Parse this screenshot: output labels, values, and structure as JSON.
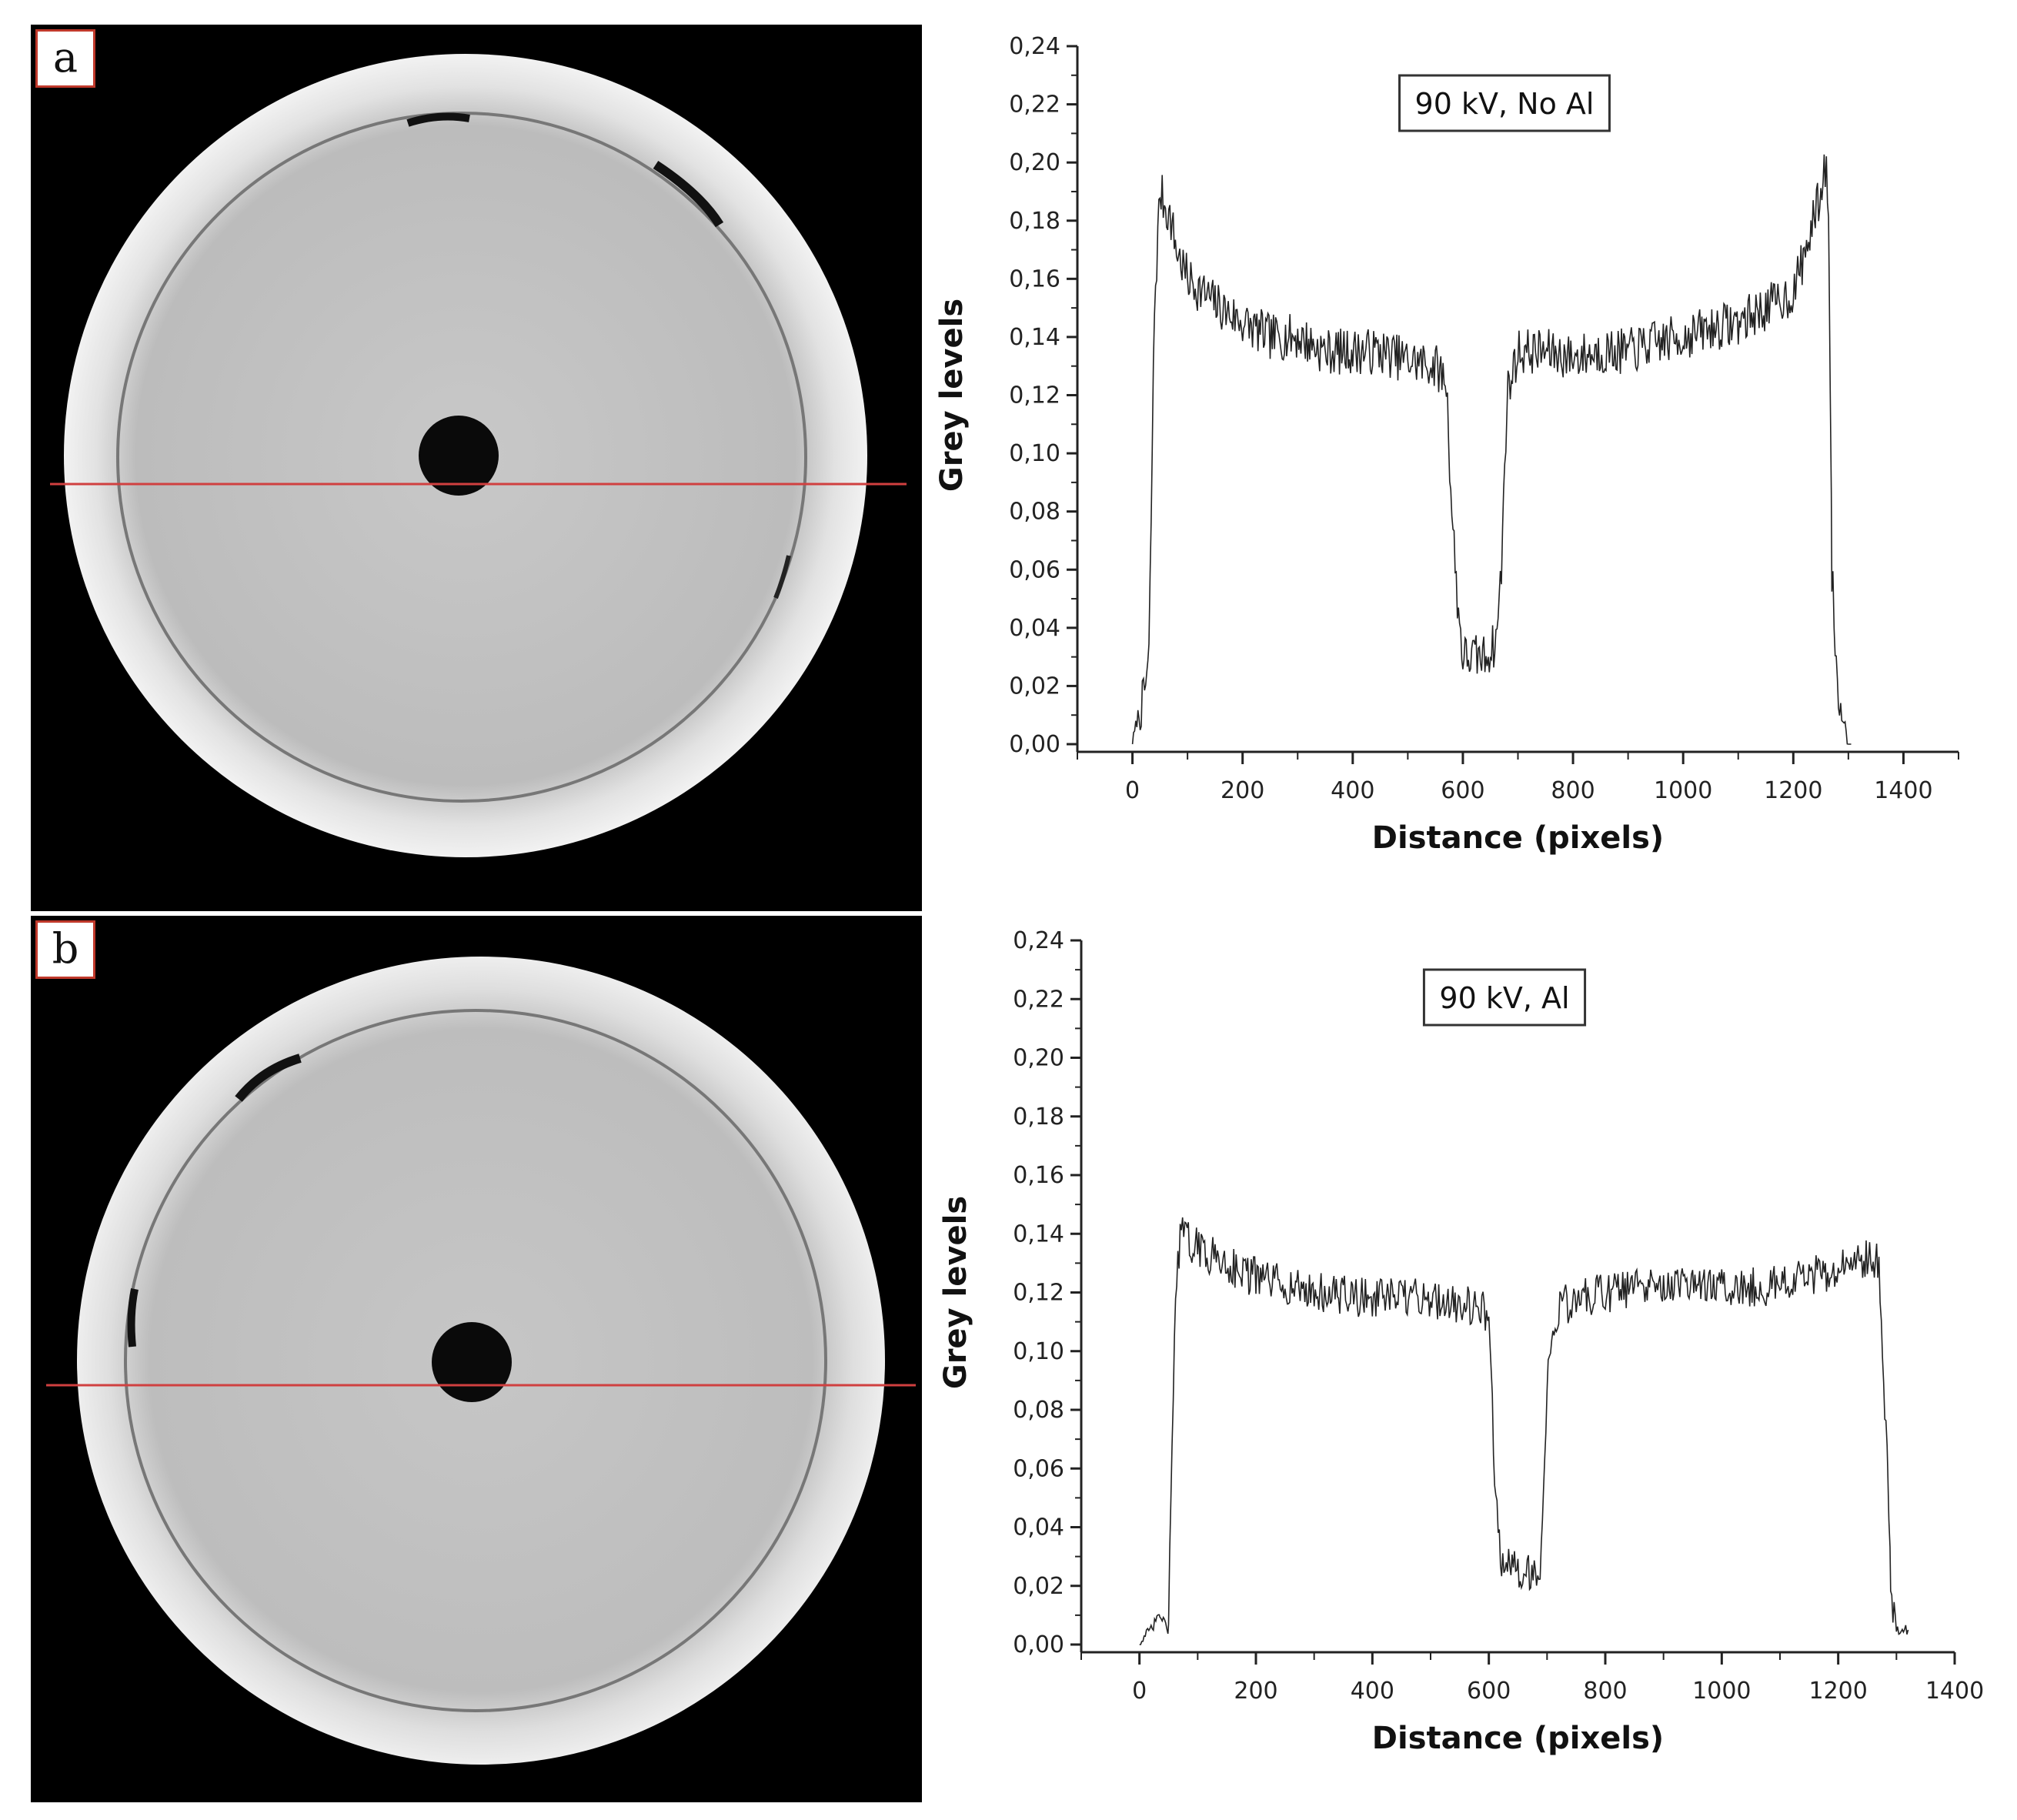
{
  "panels": [
    {
      "label": "a"
    },
    {
      "label": "b"
    }
  ],
  "colors": {
    "profile_line": "#d04040",
    "trace": "#222222"
  },
  "chart_data": [
    {
      "type": "line",
      "title": "",
      "legend": "90 kV, No Al",
      "legend_placement": "top-center",
      "xlabel": "Distance (pixels)",
      "ylabel": "Grey levels",
      "xlim": [
        -100,
        1500
      ],
      "ylim": [
        0,
        0.24
      ],
      "xticks": [
        0,
        200,
        400,
        600,
        800,
        1000,
        1200,
        1400
      ],
      "xtick_labels": [
        "0",
        "200",
        "400",
        "600",
        "800",
        "1000",
        "1200",
        "1400"
      ],
      "yticks": [
        0,
        0.02,
        0.04,
        0.06,
        0.08,
        0.1,
        0.12,
        0.14,
        0.16,
        0.18,
        0.2,
        0.22,
        0.24
      ],
      "ytick_labels": [
        "0,00",
        "0,02",
        "0,04",
        "0,06",
        "0,08",
        "0,10",
        "0,12",
        "0,14",
        "0,16",
        "0,18",
        "0,20",
        "0,22",
        "0,24"
      ],
      "grid": false,
      "series": [
        {
          "x": [
            0,
            10,
            20,
            30,
            40,
            50,
            60,
            70,
            80,
            100,
            130,
            160,
            200,
            250,
            300,
            350,
            400,
            450,
            500,
            550,
            570,
            580,
            590,
            600,
            620,
            640,
            660,
            670,
            680,
            700,
            750,
            800,
            850,
            900,
            950,
            1000,
            1050,
            1100,
            1150,
            1200,
            1230,
            1250,
            1260,
            1265,
            1270,
            1280,
            1290,
            1300,
            1305
          ],
          "y": [
            0.0,
            0.01,
            0.015,
            0.03,
            0.15,
            0.19,
            0.185,
            0.18,
            0.17,
            0.16,
            0.155,
            0.15,
            0.145,
            0.14,
            0.14,
            0.135,
            0.135,
            0.135,
            0.132,
            0.13,
            0.125,
            0.08,
            0.05,
            0.03,
            0.03,
            0.03,
            0.035,
            0.06,
            0.12,
            0.135,
            0.135,
            0.133,
            0.135,
            0.135,
            0.138,
            0.14,
            0.143,
            0.145,
            0.15,
            0.155,
            0.175,
            0.19,
            0.2,
            0.17,
            0.06,
            0.02,
            0.01,
            0.0,
            0.0
          ],
          "noise": 0.008
        }
      ]
    },
    {
      "type": "line",
      "title": "",
      "legend": "90 kV, Al",
      "legend_placement": "top-center",
      "xlabel": "Distance (pixels)",
      "ylabel": "Grey levels",
      "xlim": [
        -100,
        1400
      ],
      "ylim": [
        0,
        0.24
      ],
      "xticks": [
        0,
        200,
        400,
        600,
        800,
        1000,
        1200,
        1400
      ],
      "xtick_labels": [
        "0",
        "200",
        "400",
        "600",
        "800",
        "1000",
        "1200",
        "1400"
      ],
      "yticks": [
        0,
        0.02,
        0.04,
        0.06,
        0.08,
        0.1,
        0.12,
        0.14,
        0.16,
        0.18,
        0.2,
        0.22,
        0.24
      ],
      "ytick_labels": [
        "0,00",
        "0,02",
        "0,04",
        "0,06",
        "0,08",
        "0,10",
        "0,12",
        "0,14",
        "0,16",
        "0,18",
        "0,20",
        "0,22",
        "0,24"
      ],
      "grid": false,
      "series": [
        {
          "x": [
            0,
            20,
            35,
            50,
            60,
            70,
            100,
            150,
            200,
            300,
            400,
            500,
            580,
            600,
            610,
            620,
            640,
            660,
            680,
            690,
            700,
            720,
            800,
            900,
            1000,
            1100,
            1200,
            1250,
            1270,
            1285,
            1290,
            1300,
            1310,
            1320
          ],
          "y": [
            0.0,
            0.005,
            0.01,
            0.005,
            0.11,
            0.14,
            0.135,
            0.13,
            0.125,
            0.12,
            0.118,
            0.118,
            0.115,
            0.112,
            0.06,
            0.03,
            0.025,
            0.025,
            0.025,
            0.03,
            0.09,
            0.115,
            0.12,
            0.122,
            0.122,
            0.122,
            0.128,
            0.132,
            0.13,
            0.06,
            0.02,
            0.005,
            0.005,
            0.005
          ],
          "noise": 0.007
        }
      ]
    }
  ]
}
